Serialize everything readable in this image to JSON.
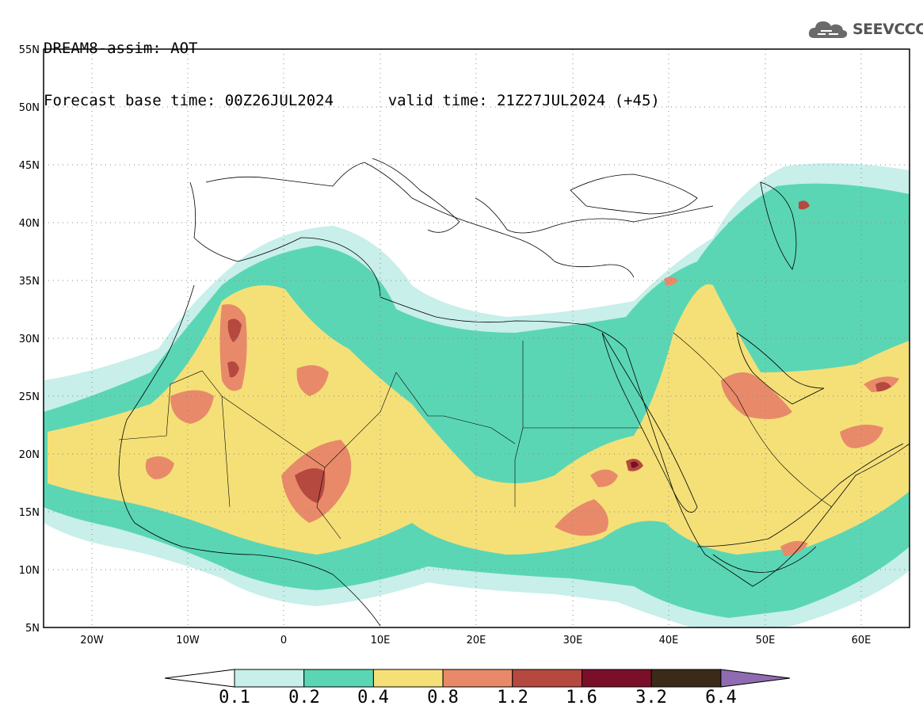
{
  "header": {
    "model_title": "DREAM8-assim: AOT",
    "base_time": "Forecast base time: 00Z26JUL2024",
    "valid_time": "valid time: 21Z27JUL2024 (+45)"
  },
  "logo": {
    "text": "SEEVCCC",
    "icon": "cloud-icon"
  },
  "map": {
    "projection": "equirectangular",
    "lon_range": [
      -25,
      65
    ],
    "lat_range": [
      5,
      55
    ],
    "lat_labels": [
      "55N",
      "50N",
      "45N",
      "40N",
      "35N",
      "30N",
      "25N",
      "20N",
      "15N",
      "10N",
      "5N"
    ],
    "lon_labels": [
      "20W",
      "10W",
      "0",
      "10E",
      "20E",
      "30E",
      "40E",
      "50E",
      "60E"
    ],
    "gridlines": "dotted"
  },
  "colorbar": {
    "levels": [
      "0.1",
      "0.2",
      "0.4",
      "0.8",
      "1.2",
      "1.6",
      "3.2",
      "6.4"
    ],
    "colors": [
      "#c8efea",
      "#5bd6b4",
      "#f5e078",
      "#e88a6a",
      "#b5493f",
      "#7a0f2a",
      "#3c2a18"
    ],
    "under_color": "#ffffff",
    "over_color": "#8f6bb1"
  }
}
